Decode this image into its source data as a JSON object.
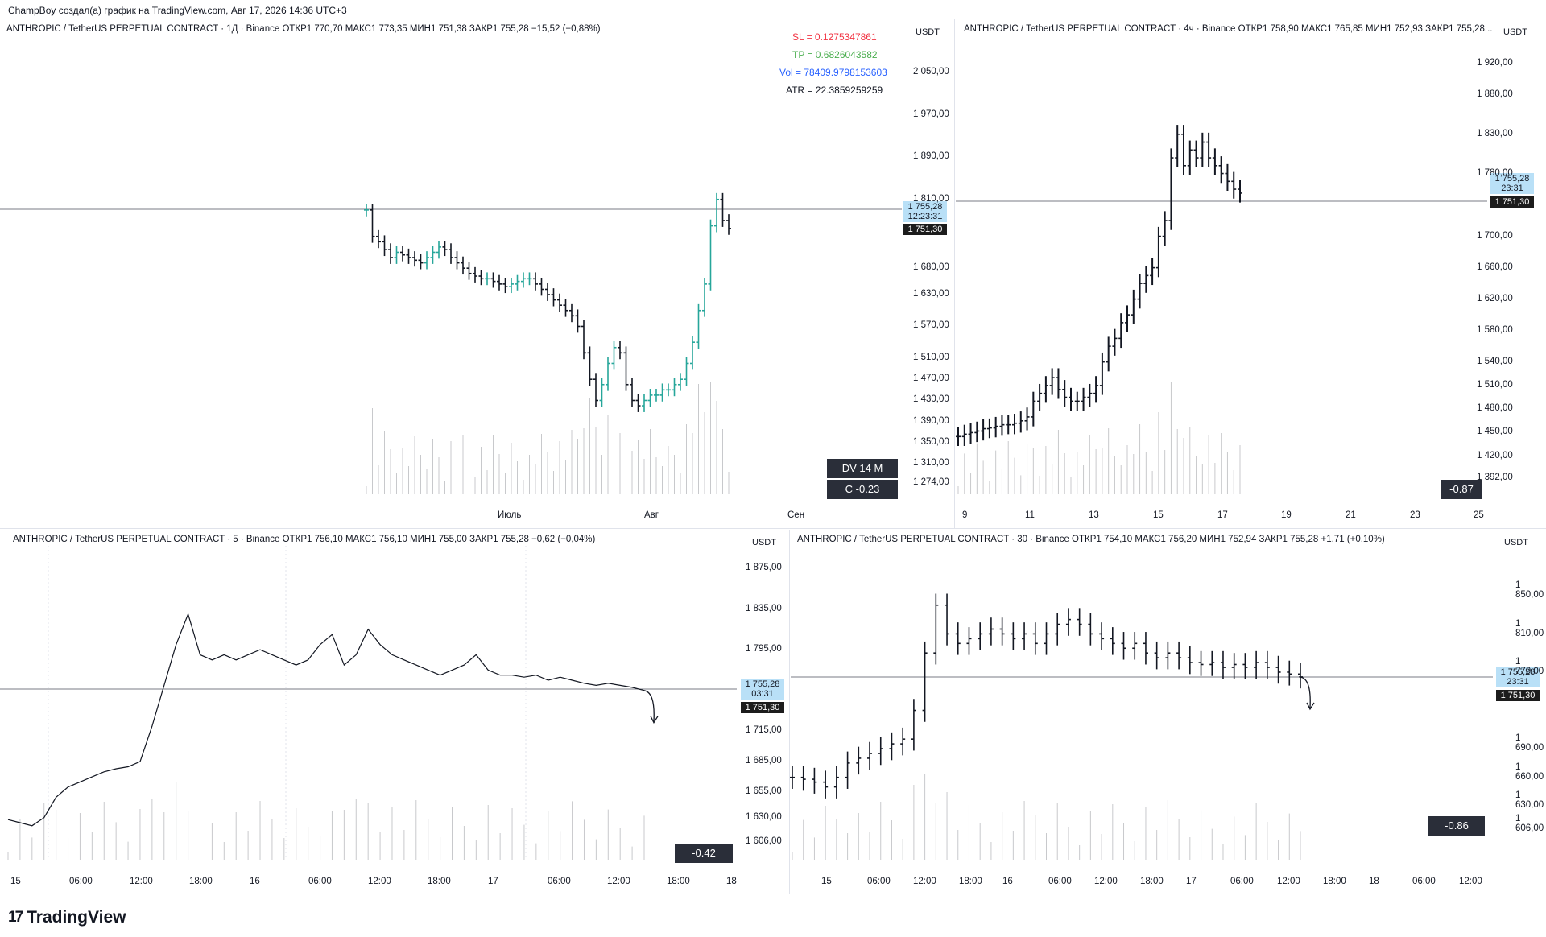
{
  "header": {
    "author_line": "ChampBoy создал(а) график на TradingView.com, Авг 17, 2026 14:36 UTC+3"
  },
  "brand": {
    "name": "TradingView",
    "icon": "tradingview-logo-icon"
  },
  "colors": {
    "up": "#26a69a",
    "down": "#131722",
    "sl": "#f23645",
    "tp": "#4caf50",
    "vol": "#2962ff",
    "atr": "#131722",
    "last_price_bg": "#b9e0f7",
    "dark_box": "#2a2e39"
  },
  "chart_data": [
    {
      "type": "bar",
      "pane": "daily",
      "legend": "ANTHROPIC / TetherUS PERPETUAL CONTRACT · 1Д · Binance   ОТКР1 770,70   МАКС1 773,35   МИН1 751,38   ЗАКР1 755,28   −15,52 (−0,88%)",
      "unit": "USDT",
      "price_ticks": [
        "2 050,00",
        "1 970,00",
        "1 890,00",
        "1 810,00",
        "1 680,00",
        "1 630,00",
        "1 570,00",
        "1 510,00",
        "1 470,00",
        "1 430,00",
        "1 390,00",
        "1 350,00",
        "1 310,00",
        "1 274,00"
      ],
      "time_ticks": [
        "Июль",
        "Авг",
        "Сен"
      ],
      "last_price": "1 755,28",
      "countdown": "12:23:31",
      "other_price": "1 751,30",
      "indicators": {
        "sl": "SL = 0.1275347861",
        "tp": "TP = 0.6826043582",
        "vol": "Vol = 78409.9798153603",
        "atr": "ATR = 22.3859259259"
      },
      "stats": {
        "dv": "DV 14 M",
        "c": "C  -0.23"
      },
      "approx_close_path": [
        1790,
        1740,
        1730,
        1715,
        1700,
        1710,
        1705,
        1700,
        1695,
        1690,
        1700,
        1710,
        1720,
        1715,
        1700,
        1690,
        1680,
        1670,
        1665,
        1660,
        1660,
        1655,
        1650,
        1645,
        1650,
        1655,
        1660,
        1660,
        1650,
        1640,
        1630,
        1620,
        1610,
        1600,
        1590,
        1570,
        1520,
        1470,
        1430,
        1460,
        1500,
        1530,
        1520,
        1460,
        1430,
        1420,
        1430,
        1440,
        1440,
        1450,
        1450,
        1460,
        1470,
        1500,
        1540,
        1600,
        1650,
        1760,
        1810,
        1770,
        1755
      ]
    },
    {
      "type": "bar",
      "pane": "4h",
      "legend": "ANTHROPIC / TetherUS PERPETUAL CONTRACT · 4ч · Binance   ОТКР1 758,90   МАКС1 765,85   МИН1 752,93   ЗАКР1 755,28...",
      "unit": "USDT",
      "price_ticks": [
        "1 920,00",
        "1 880,00",
        "1 830,00",
        "1 780,00",
        "1 700,00",
        "1 660,00",
        "1 620,00",
        "1 580,00",
        "1 540,00",
        "1 510,00",
        "1 480,00",
        "1 450,00",
        "1 420,00",
        "1 392,00"
      ],
      "time_ticks": [
        "9",
        "11",
        "13",
        "15",
        "17",
        "19",
        "21",
        "23",
        "25"
      ],
      "last_price": "1 755,28",
      "countdown": "23:31",
      "other_price": "1 751,30",
      "stat": "-0.87",
      "approx_close_path": [
        1445,
        1448,
        1450,
        1452,
        1455,
        1456,
        1458,
        1460,
        1460,
        1462,
        1465,
        1470,
        1490,
        1500,
        1510,
        1520,
        1505,
        1495,
        1490,
        1490,
        1495,
        1500,
        1510,
        1540,
        1560,
        1570,
        1590,
        1600,
        1620,
        1640,
        1650,
        1660,
        1700,
        1720,
        1800,
        1830,
        1790,
        1810,
        1800,
        1820,
        1800,
        1790,
        1780,
        1770,
        1760,
        1755
      ]
    },
    {
      "type": "line",
      "pane": "5m",
      "legend": "ANTHROPIC / TetherUS PERPETUAL CONTRACT · 5 · Binance   ОТКР1 756,10   МАКС1 756,10   МИН1 755,00   ЗАКР1 755,28   −0,62 (−0,04%)",
      "unit": "USDT",
      "price_ticks": [
        "1 875,00",
        "1 835,00",
        "1 795,00",
        "1 715,00",
        "1 685,00",
        "1 655,00",
        "1 630,00",
        "1 606,00"
      ],
      "time_ticks": [
        "15",
        "06:00",
        "12:00",
        "18:00",
        "16",
        "06:00",
        "12:00",
        "18:00",
        "17",
        "06:00",
        "12:00",
        "18:00",
        "18"
      ],
      "last_price": "1 755,28",
      "countdown": "03:31",
      "other_price": "1 751,30",
      "stat": "-0.42",
      "approx_close_path": [
        1628,
        1625,
        1622,
        1630,
        1650,
        1660,
        1665,
        1670,
        1675,
        1678,
        1680,
        1685,
        1720,
        1760,
        1800,
        1830,
        1790,
        1785,
        1790,
        1785,
        1790,
        1795,
        1790,
        1785,
        1780,
        1785,
        1800,
        1810,
        1780,
        1790,
        1815,
        1800,
        1790,
        1785,
        1780,
        1775,
        1770,
        1775,
        1780,
        1790,
        1775,
        1770,
        1770,
        1768,
        1770,
        1765,
        1768,
        1765,
        1762,
        1760,
        1762,
        1760,
        1758,
        1755
      ]
    },
    {
      "type": "bar",
      "pane": "30m",
      "legend": "ANTHROPIC / TetherUS PERPETUAL CONTRACT · 30 · Binance   ОТКР1 754,10   МАКС1 756,20   МИН1 752,94   ЗАКР1 755,28   +1,71 (+0,10%)",
      "unit": "USDT",
      "price_ticks": [
        "1 850,00",
        "1 810,00",
        "1 770,00",
        "1 690,00",
        "1 660,00",
        "1 630,00",
        "1 606,00"
      ],
      "time_ticks": [
        "15",
        "06:00",
        "12:00",
        "18:00",
        "16",
        "06:00",
        "12:00",
        "18:00",
        "17",
        "06:00",
        "12:00",
        "18:00",
        "18",
        "06:00",
        "12:00"
      ],
      "last_price": "1 755,28",
      "countdown": "23:31",
      "other_price": "1 751,30",
      "stat": "-0.86",
      "approx_close_path": [
        1650,
        1648,
        1645,
        1640,
        1650,
        1665,
        1670,
        1675,
        1680,
        1685,
        1690,
        1720,
        1780,
        1830,
        1800,
        1790,
        1795,
        1800,
        1805,
        1800,
        1795,
        1800,
        1790,
        1800,
        1810,
        1815,
        1810,
        1800,
        1795,
        1790,
        1785,
        1790,
        1780,
        1775,
        1780,
        1775,
        1770,
        1768,
        1770,
        1765,
        1768,
        1765,
        1770,
        1765,
        1760,
        1758,
        1755
      ]
    }
  ]
}
